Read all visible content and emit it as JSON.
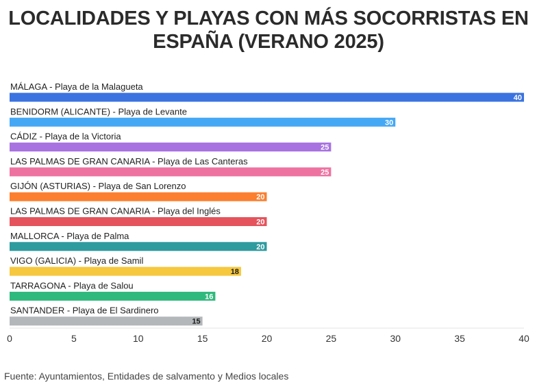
{
  "title_lines": [
    "LOCALIDADES Y PLAYAS CON MÁS SOCORRISTAS EN",
    "ESPAÑA (VERANO 2025)"
  ],
  "source": "Fuente: Ayuntamientos, Entidades de salvamento y Medios locales",
  "chart_data": {
    "type": "bar",
    "orientation": "horizontal",
    "title": "LOCALIDADES Y PLAYAS CON MÁS SOCORRISTAS EN ESPAÑA (VERANO 2025)",
    "categories": [
      "MÁLAGA - Playa de la Malagueta",
      "BENIDORM (ALICANTE) - Playa de Levante",
      "CÁDIZ - Playa de la Victoria",
      "LAS PALMAS DE GRAN CANARIA - Playa de Las Canteras",
      "GIJÓN (ASTURIAS) - Playa de San Lorenzo",
      "LAS PALMAS DE GRAN CANARIA - Playa del Inglés",
      "MALLORCA - Playa de Palma",
      "VIGO (GALICIA) - Playa de Samil",
      "TARRAGONA - Playa de Salou",
      "SANTANDER - Playa de El Sardinero"
    ],
    "values": [
      40,
      30,
      25,
      25,
      20,
      20,
      20,
      18,
      16,
      15
    ],
    "labels": [
      "40",
      "30",
      "25",
      "25",
      "20",
      "20",
      "20",
      "18",
      "16",
      "15"
    ],
    "colors": [
      "#3b73e0",
      "#45a8f5",
      "#a872e0",
      "#ee72a0",
      "#fb7f2f",
      "#e5535c",
      "#2e9b9f",
      "#f6c83e",
      "#2fb97c",
      "#b4b7ba"
    ],
    "label_colors": [
      "#ffffff",
      "#ffffff",
      "#ffffff",
      "#ffffff",
      "#ffffff",
      "#ffffff",
      "#ffffff",
      "#1a1a1a",
      "#ffffff",
      "#1a1a1a"
    ],
    "xlim": [
      0,
      40
    ],
    "xticks": [
      "0",
      "5",
      "10",
      "15",
      "20",
      "25",
      "30",
      "35",
      "40"
    ],
    "xtick_values": [
      0,
      5,
      10,
      15,
      20,
      25,
      30,
      35,
      40
    ],
    "grid": false
  }
}
